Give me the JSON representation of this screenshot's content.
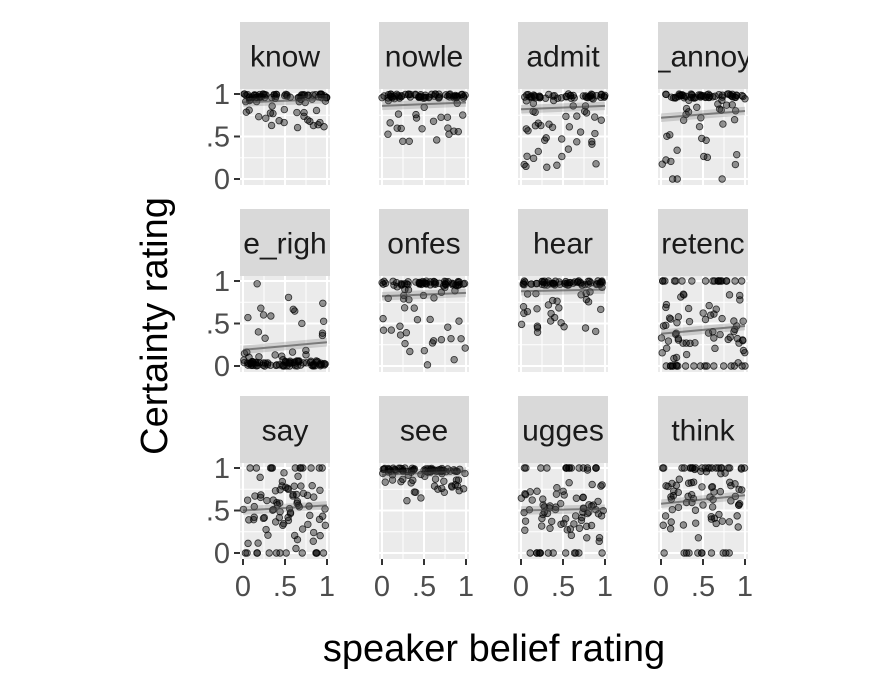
{
  "chart_data": {
    "type": "scatter",
    "facet_layout": "4x3 grid",
    "xlabel": "speaker belief rating",
    "ylabel": "Certainty rating",
    "xlim": [
      0,
      1
    ],
    "ylim": [
      0,
      1
    ],
    "x_ticks": [
      "0",
      ".5",
      "1"
    ],
    "y_ticks": [
      "0",
      ".5",
      "1"
    ],
    "x_tick_values": [
      0,
      0.5,
      1
    ],
    "y_tick_values": [
      0,
      0.5,
      1
    ],
    "point_color": "#000000",
    "panel_background": "#ebebeb",
    "strip_background": "#d9d9d9",
    "panels": [
      {
        "label": "know",
        "center": 0.92,
        "spread": 0.09,
        "n": 85,
        "fit": [
          0.9,
          0.94
        ]
      },
      {
        "label": "nowle",
        "center": 0.88,
        "spread": 0.14,
        "n": 85,
        "fit": [
          0.86,
          0.9
        ]
      },
      {
        "label": "admit",
        "center": 0.84,
        "spread": 0.2,
        "n": 85,
        "fit": [
          0.82,
          0.86
        ]
      },
      {
        "label": "_annoy",
        "center": 0.78,
        "spread": 0.26,
        "n": 85,
        "fit": [
          0.72,
          0.8
        ]
      },
      {
        "label": "e_righ",
        "center": 0.14,
        "spread": 0.26,
        "n": 95,
        "fit": [
          0.19,
          0.28
        ]
      },
      {
        "label": "onfes",
        "center": 0.82,
        "spread": 0.22,
        "n": 90,
        "fit": [
          0.82,
          0.86
        ]
      },
      {
        "label": "hear",
        "center": 0.88,
        "spread": 0.14,
        "n": 85,
        "fit": [
          0.88,
          0.9
        ]
      },
      {
        "label": "retenc",
        "center": 0.45,
        "spread": 0.38,
        "n": 95,
        "fit": [
          0.38,
          0.47
        ]
      },
      {
        "label": "say",
        "center": 0.55,
        "spread": 0.28,
        "n": 95,
        "fit": [
          0.5,
          0.56
        ]
      },
      {
        "label": "see",
        "center": 0.92,
        "spread": 0.09,
        "n": 85,
        "fit": [
          0.92,
          0.96
        ]
      },
      {
        "label": "ugges",
        "center": 0.5,
        "spread": 0.3,
        "n": 95,
        "fit": [
          0.5,
          0.52
        ]
      },
      {
        "label": "think",
        "center": 0.62,
        "spread": 0.3,
        "n": 95,
        "fit": [
          0.58,
          0.68
        ]
      }
    ]
  }
}
